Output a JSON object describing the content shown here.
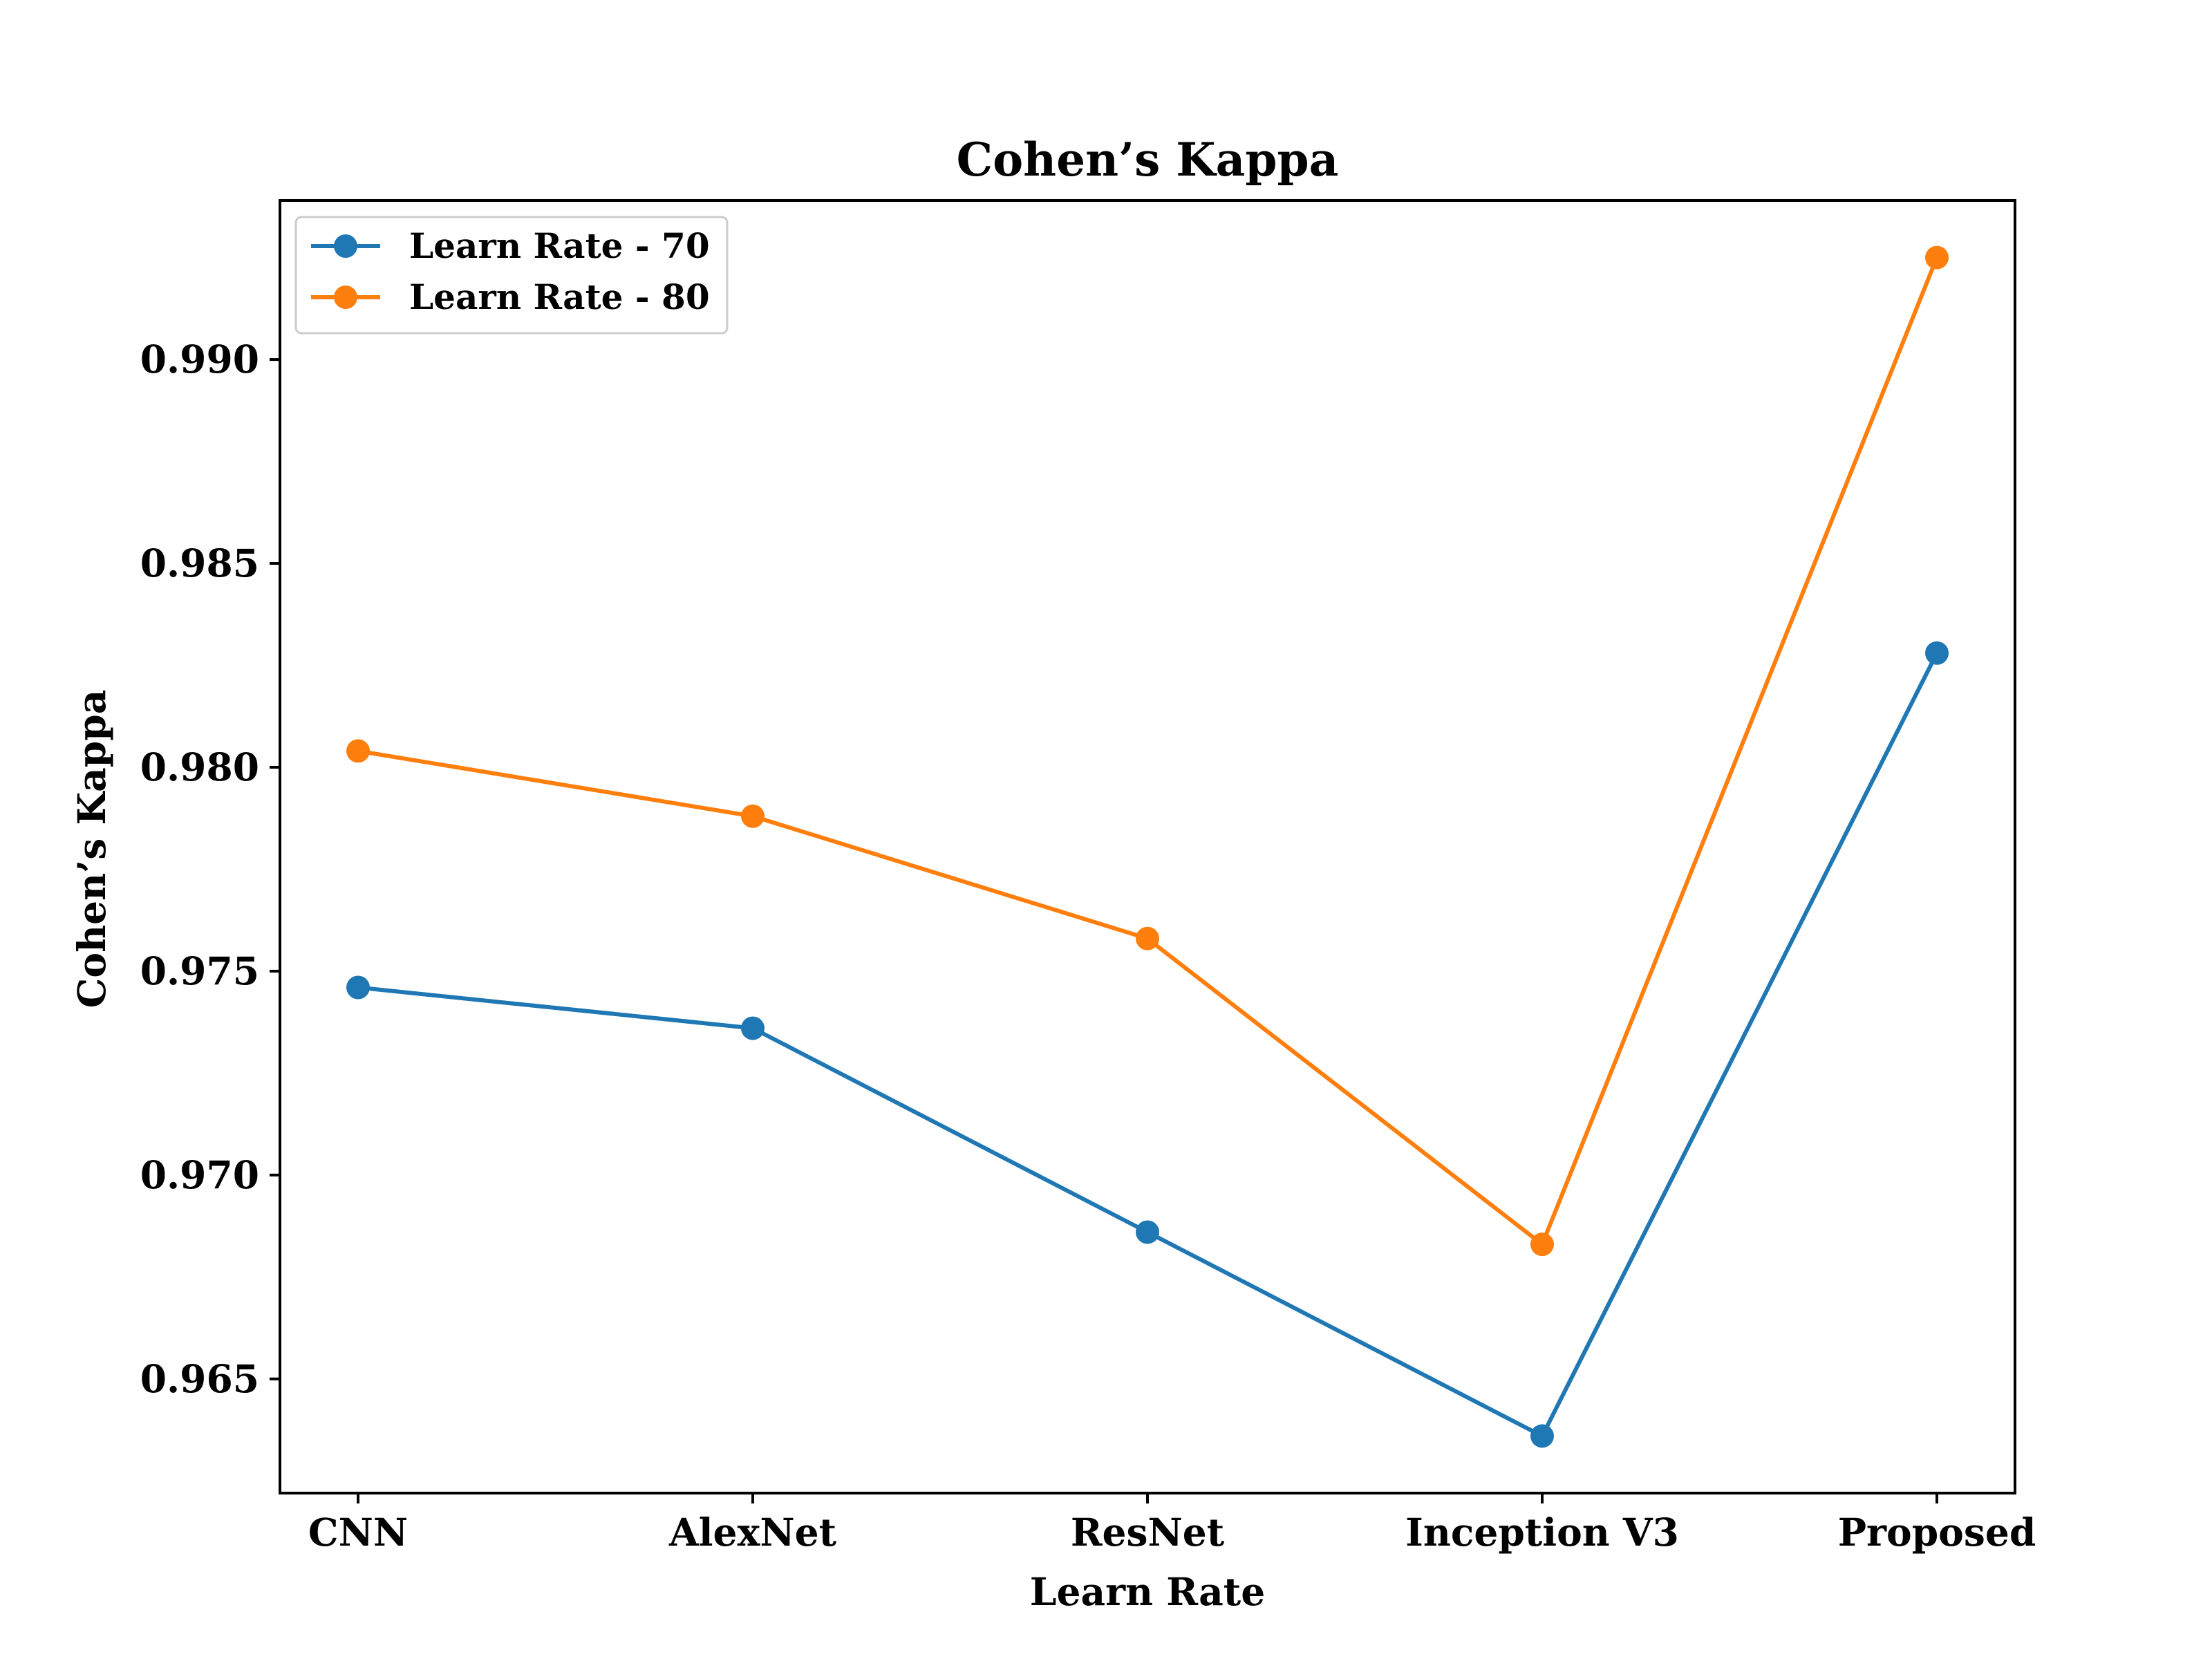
{
  "chart_data": {
    "type": "line",
    "title": "Cohen’s Kappa",
    "xlabel": "Learn Rate",
    "ylabel": "Cohen’s Kappa",
    "categories": [
      "CNN",
      "AlexNet",
      "ResNet",
      "Inception V3",
      "Proposed"
    ],
    "series": [
      {
        "name": "Learn Rate - 70",
        "color": "#1f77b4",
        "values": [
          0.9746,
          0.9736,
          0.9686,
          0.9636,
          0.9828
        ]
      },
      {
        "name": "Learn Rate - 80",
        "color": "#ff7f0e",
        "values": [
          0.9804,
          0.9788,
          0.9758,
          0.9683,
          0.9925
        ]
      }
    ],
    "ylim": [
      0.9622,
      0.9939
    ],
    "yticks": [
      0.965,
      0.97,
      0.975,
      0.98,
      0.985,
      0.99
    ],
    "ytick_labels": [
      "0.965",
      "0.970",
      "0.975",
      "0.980",
      "0.985",
      "0.990"
    ],
    "grid": false,
    "legend_position": "upper-left",
    "marker": "circle"
  }
}
